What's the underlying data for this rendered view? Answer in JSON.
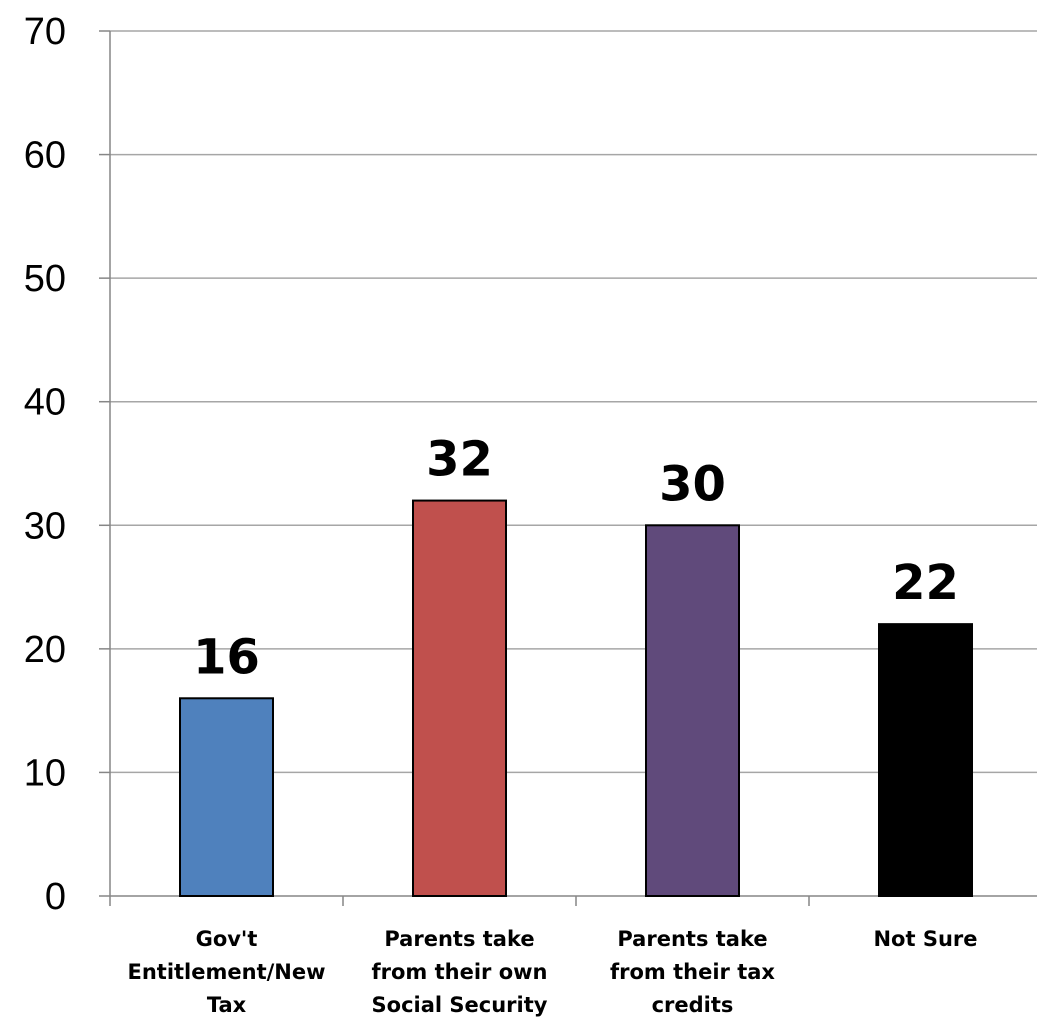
{
  "chart_data": {
    "type": "bar",
    "title": "",
    "xlabel": "",
    "ylabel": "",
    "categories": [
      "Gov't Entitlement/New Tax",
      "Parents take from their own Social Security",
      "Parents take from their tax credits",
      "Not Sure"
    ],
    "category_lines": [
      [
        "Gov't",
        "Entitlement/New",
        "Tax"
      ],
      [
        "Parents take",
        "from their own",
        "Social Security"
      ],
      [
        "Parents take",
        "from their tax",
        "credits"
      ],
      [
        "Not Sure"
      ]
    ],
    "values": [
      16,
      32,
      30,
      22
    ],
    "value_labels": [
      "16",
      "32",
      "30",
      "22"
    ],
    "colors": [
      "#4f81bd",
      "#c0504d",
      "#604a7b",
      "#000000"
    ],
    "ylim": [
      0,
      70
    ],
    "yticks": [
      0,
      10,
      20,
      30,
      40,
      50,
      60,
      70
    ],
    "ytick_labels": [
      "0",
      "10",
      "20",
      "30",
      "40",
      "50",
      "60",
      "70"
    ],
    "grid": true,
    "legend": "none"
  }
}
